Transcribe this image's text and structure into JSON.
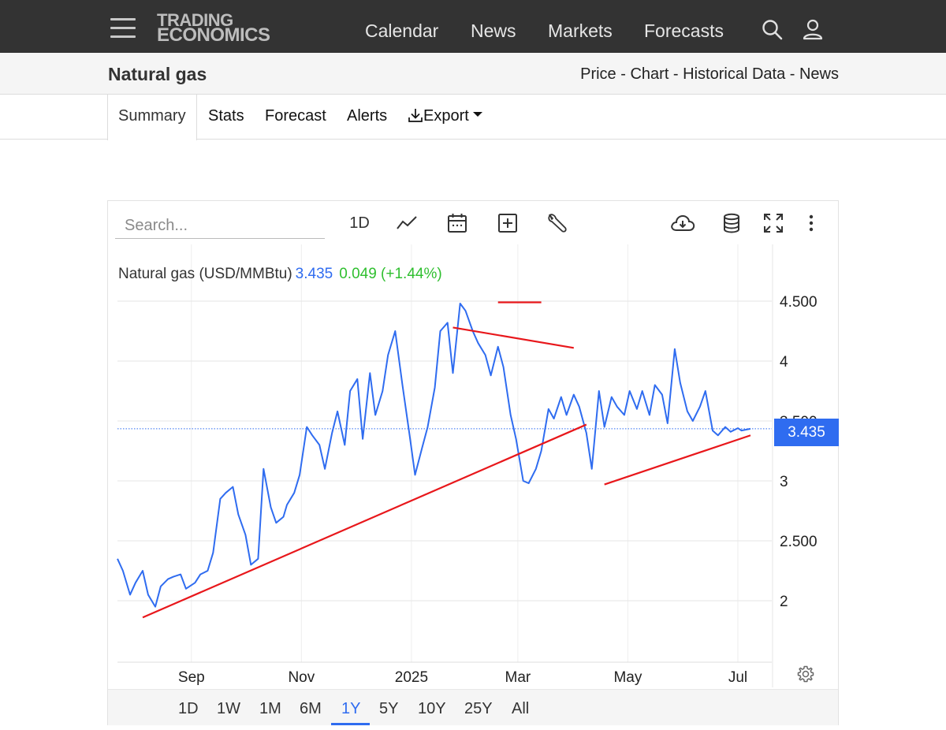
{
  "nav": {
    "logo_line1": "TRADING",
    "logo_line2": "ECONOMICS",
    "links": [
      {
        "label": "Calendar"
      },
      {
        "label": "News"
      },
      {
        "label": "Markets"
      },
      {
        "label": "Forecasts"
      }
    ]
  },
  "titlebar": {
    "title": "Natural gas",
    "crumbs": [
      "Price",
      "Chart",
      "Historical Data",
      "News"
    ],
    "separator": " - "
  },
  "tabs": {
    "summary": "Summary",
    "stats": "Stats",
    "forecast": "Forecast",
    "alerts": "Alerts",
    "export": "Export"
  },
  "toolbar": {
    "search_placeholder": "Search...",
    "interval_label": "1D",
    "icons": [
      "line-chart-icon",
      "calendar-icon",
      "add-box-icon",
      "wrench-icon",
      "cloud-download-icon",
      "database-icon",
      "fullscreen-icon",
      "more-vertical-icon"
    ]
  },
  "legend": {
    "name": "Natural gas (USD/MMBtu)",
    "price": "3.435",
    "change": "0.049 (+1.44%)"
  },
  "price_tag": "3.435",
  "ranges": [
    {
      "label": "1D"
    },
    {
      "label": "1W"
    },
    {
      "label": "1M"
    },
    {
      "label": "6M"
    },
    {
      "label": "1Y",
      "active": true
    },
    {
      "label": "5Y"
    },
    {
      "label": "10Y"
    },
    {
      "label": "25Y"
    },
    {
      "label": "All"
    }
  ],
  "colors": {
    "series": "#2f6cf0",
    "trendline": "#e8171b",
    "change_positive": "#2fbf2f",
    "nav_bg": "#333333"
  },
  "chart_data": {
    "type": "line",
    "title": "Natural gas (USD/MMBtu)",
    "x_ticks": [
      "Sep",
      "Nov",
      "2025",
      "Mar",
      "May",
      "Jul"
    ],
    "y_ticks": [
      "2",
      "2.500",
      "3",
      "3.500",
      "4",
      "4.500"
    ],
    "y_range": [
      1.5,
      5.0
    ],
    "grid": true,
    "last_value": 3.435,
    "series": [
      {
        "name": "Natural gas",
        "x": [
          "2024-07-22",
          "2024-07-25",
          "2024-07-29",
          "2024-08-01",
          "2024-08-05",
          "2024-08-08",
          "2024-08-12",
          "2024-08-15",
          "2024-08-19",
          "2024-08-22",
          "2024-08-26",
          "2024-08-29",
          "2024-09-03",
          "2024-09-06",
          "2024-09-10",
          "2024-09-13",
          "2024-09-17",
          "2024-09-20",
          "2024-09-24",
          "2024-09-27",
          "2024-10-01",
          "2024-10-04",
          "2024-10-08",
          "2024-10-11",
          "2024-10-15",
          "2024-10-18",
          "2024-10-22",
          "2024-10-24",
          "2024-10-28",
          "2024-10-31",
          "2024-11-04",
          "2024-11-07",
          "2024-11-11",
          "2024-11-14",
          "2024-11-18",
          "2024-11-21",
          "2024-11-25",
          "2024-11-28",
          "2024-12-02",
          "2024-12-05",
          "2024-12-09",
          "2024-12-12",
          "2024-12-16",
          "2024-12-19",
          "2024-12-23",
          "2024-12-27",
          "2024-12-31",
          "2025-01-03",
          "2025-01-07",
          "2025-01-10",
          "2025-01-14",
          "2025-01-17",
          "2025-01-21",
          "2025-01-24",
          "2025-01-28",
          "2025-01-31",
          "2025-02-04",
          "2025-02-07",
          "2025-02-11",
          "2025-02-14",
          "2025-02-18",
          "2025-02-21",
          "2025-02-25",
          "2025-02-28",
          "2025-03-04",
          "2025-03-07",
          "2025-03-11",
          "2025-03-14",
          "2025-03-18",
          "2025-03-21",
          "2025-03-25",
          "2025-03-28",
          "2025-04-01",
          "2025-04-04",
          "2025-04-08",
          "2025-04-11",
          "2025-04-15",
          "2025-04-18",
          "2025-04-22",
          "2025-04-25",
          "2025-04-29",
          "2025-05-02",
          "2025-05-06",
          "2025-05-09",
          "2025-05-13",
          "2025-05-16",
          "2025-05-20",
          "2025-05-23",
          "2025-05-27",
          "2025-05-30",
          "2025-06-03",
          "2025-06-06",
          "2025-06-10",
          "2025-06-13",
          "2025-06-17",
          "2025-06-20",
          "2025-06-24",
          "2025-06-27",
          "2025-07-01",
          "2025-07-03",
          "2025-07-08"
        ],
        "values": [
          2.35,
          2.25,
          2.05,
          2.15,
          2.25,
          2.05,
          1.95,
          2.12,
          2.18,
          2.2,
          2.22,
          2.1,
          2.15,
          2.22,
          2.25,
          2.4,
          2.85,
          2.9,
          2.95,
          2.72,
          2.55,
          2.3,
          2.35,
          3.1,
          2.78,
          2.65,
          2.7,
          2.8,
          2.9,
          3.05,
          3.45,
          3.38,
          3.3,
          3.1,
          3.4,
          3.58,
          3.3,
          3.75,
          3.85,
          3.35,
          3.9,
          3.55,
          3.75,
          4.05,
          4.25,
          3.8,
          3.38,
          3.05,
          3.28,
          3.45,
          3.78,
          4.25,
          4.32,
          3.9,
          4.48,
          4.42,
          4.25,
          4.15,
          4.05,
          3.88,
          4.12,
          3.95,
          3.55,
          3.35,
          3.0,
          2.98,
          3.1,
          3.25,
          3.6,
          3.52,
          3.7,
          3.55,
          3.72,
          3.62,
          3.4,
          3.1,
          3.75,
          3.45,
          3.7,
          3.62,
          3.55,
          3.75,
          3.6,
          3.75,
          3.55,
          3.8,
          3.72,
          3.48,
          4.1,
          3.82,
          3.58,
          3.5,
          3.62,
          3.75,
          3.42,
          3.38,
          3.45,
          3.41,
          3.44,
          3.42,
          3.435
        ]
      }
    ],
    "trendlines": [
      {
        "x": [
          "2024-08-05",
          "2025-04-08"
        ],
        "y": [
          1.86,
          3.47
        ]
      },
      {
        "x": [
          "2025-01-24",
          "2025-04-01"
        ],
        "y": [
          4.28,
          4.11
        ]
      },
      {
        "x": [
          "2025-02-18",
          "2025-03-14"
        ],
        "y": [
          4.49,
          4.49
        ]
      },
      {
        "x": [
          "2025-04-18",
          "2025-07-08"
        ],
        "y": [
          2.97,
          3.38
        ]
      }
    ]
  }
}
